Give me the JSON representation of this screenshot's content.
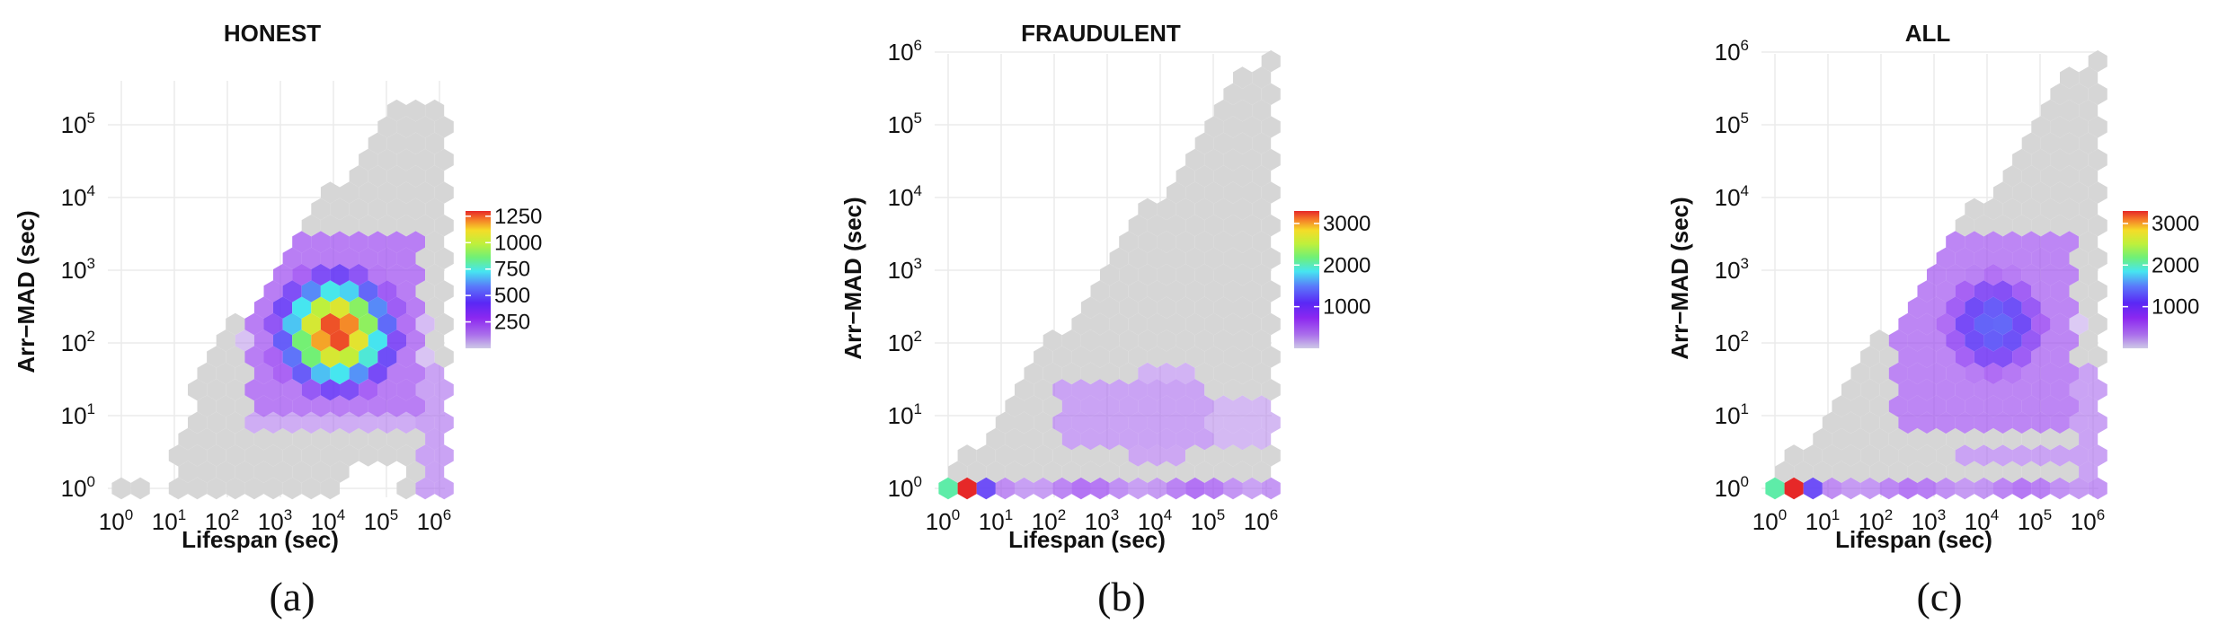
{
  "chart_data": [
    {
      "type": "heatmap",
      "subtype": "hexbin",
      "title": "HONEST",
      "xlabel": "Lifespan (sec)",
      "ylabel": "Arr−MAD (sec)",
      "x_scale": "log10",
      "y_scale": "log10",
      "xlim": [
        1,
        1000000
      ],
      "ylim": [
        1,
        100000
      ],
      "x_ticks": [
        {
          "base": "10",
          "exp": "0"
        },
        {
          "base": "10",
          "exp": "1"
        },
        {
          "base": "10",
          "exp": "2"
        },
        {
          "base": "10",
          "exp": "3"
        },
        {
          "base": "10",
          "exp": "4"
        },
        {
          "base": "10",
          "exp": "5"
        },
        {
          "base": "10",
          "exp": "6"
        }
      ],
      "y_ticks": [
        {
          "base": "10",
          "exp": "0"
        },
        {
          "base": "10",
          "exp": "1"
        },
        {
          "base": "10",
          "exp": "2"
        },
        {
          "base": "10",
          "exp": "3"
        },
        {
          "base": "10",
          "exp": "4"
        },
        {
          "base": "10",
          "exp": "5"
        }
      ],
      "colorbar": {
        "ticks": [
          "1250",
          "1000",
          "750",
          "500",
          "250"
        ],
        "min": 0,
        "max": 1300
      },
      "hotspot": {
        "log_lifespan": 4.1,
        "log_arr_mad": 2.15,
        "peak_count": 1300
      },
      "caption": "(a)"
    },
    {
      "type": "heatmap",
      "subtype": "hexbin",
      "title": "FRAUDULENT",
      "xlabel": "Lifespan (sec)",
      "ylabel": "Arr−MAD (sec)",
      "x_scale": "log10",
      "y_scale": "log10",
      "xlim": [
        1,
        1000000
      ],
      "ylim": [
        1,
        1000000
      ],
      "x_ticks": [
        {
          "base": "10",
          "exp": "0"
        },
        {
          "base": "10",
          "exp": "1"
        },
        {
          "base": "10",
          "exp": "2"
        },
        {
          "base": "10",
          "exp": "3"
        },
        {
          "base": "10",
          "exp": "4"
        },
        {
          "base": "10",
          "exp": "5"
        },
        {
          "base": "10",
          "exp": "6"
        }
      ],
      "y_ticks": [
        {
          "base": "10",
          "exp": "0"
        },
        {
          "base": "10",
          "exp": "1"
        },
        {
          "base": "10",
          "exp": "2"
        },
        {
          "base": "10",
          "exp": "3"
        },
        {
          "base": "10",
          "exp": "4"
        },
        {
          "base": "10",
          "exp": "5"
        },
        {
          "base": "10",
          "exp": "6"
        }
      ],
      "colorbar": {
        "ticks": [
          "3000",
          "2000",
          "1000"
        ],
        "min": 0,
        "max": 3300
      },
      "hotspot": {
        "log_lifespan": 0.3,
        "log_arr_mad": 0.0,
        "peak_count": 3300
      },
      "caption": "(b)"
    },
    {
      "type": "heatmap",
      "subtype": "hexbin",
      "title": "ALL",
      "xlabel": "Lifespan (sec)",
      "ylabel": "Arr−MAD (sec)",
      "x_scale": "log10",
      "y_scale": "log10",
      "xlim": [
        1,
        1000000
      ],
      "ylim": [
        1,
        1000000
      ],
      "x_ticks": [
        {
          "base": "10",
          "exp": "0"
        },
        {
          "base": "10",
          "exp": "1"
        },
        {
          "base": "10",
          "exp": "2"
        },
        {
          "base": "10",
          "exp": "3"
        },
        {
          "base": "10",
          "exp": "4"
        },
        {
          "base": "10",
          "exp": "5"
        },
        {
          "base": "10",
          "exp": "6"
        }
      ],
      "y_ticks": [
        {
          "base": "10",
          "exp": "0"
        },
        {
          "base": "10",
          "exp": "1"
        },
        {
          "base": "10",
          "exp": "2"
        },
        {
          "base": "10",
          "exp": "3"
        },
        {
          "base": "10",
          "exp": "4"
        },
        {
          "base": "10",
          "exp": "5"
        },
        {
          "base": "10",
          "exp": "6"
        }
      ],
      "colorbar": {
        "ticks": [
          "3000",
          "2000",
          "1000"
        ],
        "min": 0,
        "max": 3300
      },
      "hotspot": {
        "log_lifespan": 4.2,
        "log_arr_mad": 2.3,
        "peak_count": 1350
      },
      "caption": "(c)"
    }
  ]
}
